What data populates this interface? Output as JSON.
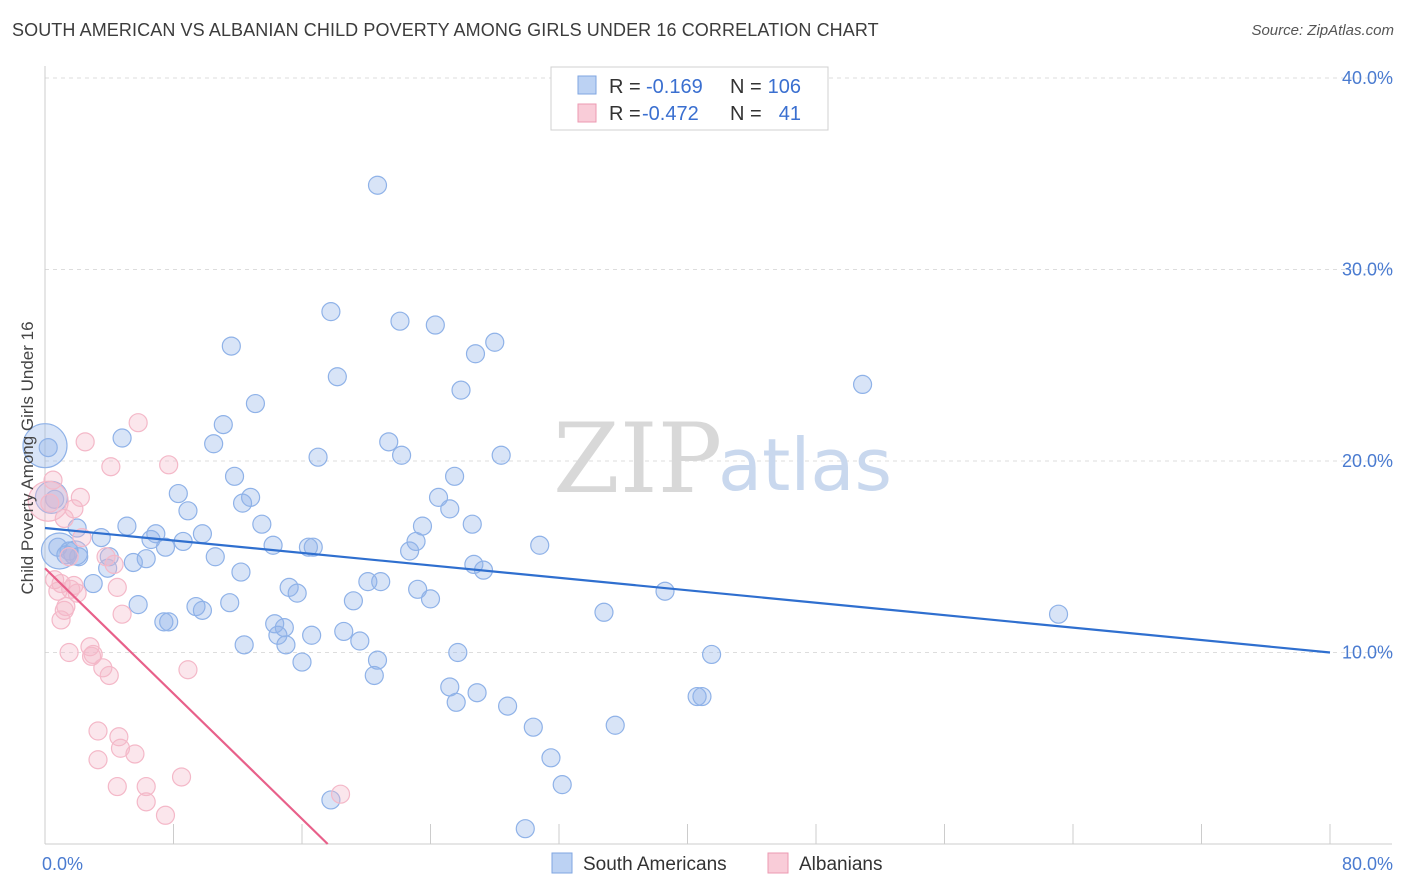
{
  "chart_data": {
    "type": "scatter",
    "title": "SOUTH AMERICAN VS ALBANIAN CHILD POVERTY AMONG GIRLS UNDER 16 CORRELATION CHART",
    "source": "Source: ZipAtlas.com",
    "ylabel": "Child Poverty Among Girls Under 16",
    "xlim": [
      0,
      80
    ],
    "ylim": [
      0,
      40
    ],
    "x_tick_labels": [
      "0.0%",
      "80.0%"
    ],
    "y_tick_labels": [
      {
        "value": 10,
        "label": "10.0%"
      },
      {
        "value": 20,
        "label": "20.0%"
      },
      {
        "value": 30,
        "label": "30.0%"
      },
      {
        "value": 40,
        "label": "40.0%"
      }
    ],
    "legend": {
      "rows": [
        {
          "r_label": "R =",
          "r_value": "-0.169",
          "n_label": "N =",
          "n_value": "106",
          "color": "#a9c4ee"
        },
        {
          "r_label": "R =",
          "r_value": "-0.472",
          "n_label": "N =",
          "n_value": "41",
          "color": "#f4b8c8"
        }
      ]
    },
    "watermark": {
      "zip": "ZIP",
      "atlas": "atlas"
    },
    "series": [
      {
        "name": "South Americans",
        "color": "#8fb2e8",
        "line_color": "#2f6fcf",
        "trend": [
          [
            0,
            16.5
          ],
          [
            80,
            10.0
          ]
        ],
        "points": [
          [
            20.7,
            34.4
          ],
          [
            17.8,
            27.8
          ],
          [
            22.1,
            27.3
          ],
          [
            24.3,
            27.1
          ],
          [
            28.0,
            26.2
          ],
          [
            11.6,
            26.0
          ],
          [
            26.8,
            25.6
          ],
          [
            18.2,
            24.4
          ],
          [
            50.9,
            24.0
          ],
          [
            25.9,
            23.7
          ],
          [
            13.1,
            23.0
          ],
          [
            11.1,
            21.9
          ],
          [
            4.8,
            21.2
          ],
          [
            21.4,
            21.0
          ],
          [
            10.5,
            20.9
          ],
          [
            22.2,
            20.3
          ],
          [
            17.0,
            20.2
          ],
          [
            28.4,
            20.3
          ],
          [
            0.2,
            20.7
          ],
          [
            11.8,
            19.2
          ],
          [
            25.5,
            19.2
          ],
          [
            8.3,
            18.3
          ],
          [
            12.8,
            18.1
          ],
          [
            24.5,
            18.1
          ],
          [
            0.6,
            18.0
          ],
          [
            12.3,
            17.8
          ],
          [
            25.2,
            17.5
          ],
          [
            8.9,
            17.4
          ],
          [
            13.5,
            16.7
          ],
          [
            26.6,
            16.7
          ],
          [
            23.5,
            16.6
          ],
          [
            2.0,
            16.5
          ],
          [
            5.1,
            16.6
          ],
          [
            6.9,
            16.2
          ],
          [
            3.5,
            16.0
          ],
          [
            9.8,
            16.2
          ],
          [
            0.8,
            15.5
          ],
          [
            6.6,
            15.9
          ],
          [
            8.6,
            15.8
          ],
          [
            16.4,
            15.5
          ],
          [
            30.8,
            15.6
          ],
          [
            14.2,
            15.6
          ],
          [
            16.7,
            15.5
          ],
          [
            23.1,
            15.8
          ],
          [
            7.5,
            15.5
          ],
          [
            1.5,
            15.3
          ],
          [
            1.3,
            15.1
          ],
          [
            2.1,
            15.0
          ],
          [
            4.0,
            15.0
          ],
          [
            6.3,
            14.9
          ],
          [
            22.7,
            15.3
          ],
          [
            26.7,
            14.6
          ],
          [
            10.6,
            15.0
          ],
          [
            5.5,
            14.7
          ],
          [
            27.3,
            14.3
          ],
          [
            3.9,
            14.4
          ],
          [
            12.2,
            14.2
          ],
          [
            20.1,
            13.7
          ],
          [
            20.9,
            13.7
          ],
          [
            23.2,
            13.3
          ],
          [
            15.2,
            13.4
          ],
          [
            15.7,
            13.1
          ],
          [
            3.0,
            13.6
          ],
          [
            19.2,
            12.7
          ],
          [
            24.0,
            12.8
          ],
          [
            38.6,
            13.2
          ],
          [
            11.5,
            12.6
          ],
          [
            9.4,
            12.4
          ],
          [
            9.8,
            12.2
          ],
          [
            5.8,
            12.5
          ],
          [
            34.8,
            12.1
          ],
          [
            63.1,
            12.0
          ],
          [
            7.4,
            11.6
          ],
          [
            7.7,
            11.6
          ],
          [
            14.3,
            11.5
          ],
          [
            14.9,
            11.3
          ],
          [
            18.6,
            11.1
          ],
          [
            16.6,
            10.9
          ],
          [
            14.5,
            10.9
          ],
          [
            19.6,
            10.6
          ],
          [
            12.4,
            10.4
          ],
          [
            15.0,
            10.4
          ],
          [
            25.7,
            10.0
          ],
          [
            41.5,
            9.9
          ],
          [
            16.0,
            9.5
          ],
          [
            20.7,
            9.6
          ],
          [
            20.5,
            8.8
          ],
          [
            25.2,
            8.2
          ],
          [
            26.9,
            7.9
          ],
          [
            40.6,
            7.7
          ],
          [
            40.9,
            7.7
          ],
          [
            25.6,
            7.4
          ],
          [
            28.8,
            7.2
          ],
          [
            30.4,
            6.1
          ],
          [
            35.5,
            6.2
          ],
          [
            31.5,
            4.5
          ],
          [
            32.2,
            3.1
          ],
          [
            17.8,
            2.3
          ],
          [
            29.9,
            0.8
          ]
        ],
        "large_points": [
          [
            0.0,
            20.8,
            22
          ],
          [
            0.4,
            18.1,
            16
          ],
          [
            0.9,
            15.3,
            18
          ],
          [
            1.9,
            15.2,
            12
          ]
        ]
      },
      {
        "name": "Albanians",
        "color": "#f4b8c8",
        "line_color": "#e8608a",
        "trend": [
          [
            0,
            14.4
          ],
          [
            17.6,
            0.0
          ]
        ],
        "points": [
          [
            5.8,
            22.0
          ],
          [
            2.5,
            21.0
          ],
          [
            7.7,
            19.8
          ],
          [
            4.1,
            19.7
          ],
          [
            0.5,
            19.0
          ],
          [
            0.3,
            17.8
          ],
          [
            2.2,
            18.1
          ],
          [
            1.8,
            17.5
          ],
          [
            1.2,
            17.0
          ],
          [
            2.3,
            16.0
          ],
          [
            1.5,
            15.0
          ],
          [
            3.8,
            15.0
          ],
          [
            4.3,
            14.6
          ],
          [
            0.6,
            13.8
          ],
          [
            1.0,
            13.6
          ],
          [
            1.6,
            13.3
          ],
          [
            1.8,
            13.5
          ],
          [
            4.5,
            13.4
          ],
          [
            2.0,
            13.1
          ],
          [
            0.8,
            13.2
          ],
          [
            1.3,
            12.4
          ],
          [
            1.2,
            12.2
          ],
          [
            4.8,
            12.0
          ],
          [
            1.0,
            11.7
          ],
          [
            2.8,
            10.3
          ],
          [
            1.5,
            10.0
          ],
          [
            3.0,
            9.9
          ],
          [
            2.9,
            9.8
          ],
          [
            3.6,
            9.2
          ],
          [
            8.9,
            9.1
          ],
          [
            4.0,
            8.8
          ],
          [
            3.3,
            5.9
          ],
          [
            4.6,
            5.6
          ],
          [
            4.7,
            5.0
          ],
          [
            5.6,
            4.7
          ],
          [
            3.3,
            4.4
          ],
          [
            8.5,
            3.5
          ],
          [
            4.5,
            3.0
          ],
          [
            6.3,
            3.0
          ],
          [
            6.3,
            2.2
          ],
          [
            18.4,
            2.6
          ],
          [
            7.5,
            1.5
          ]
        ],
        "large_points": [
          [
            0.2,
            17.9,
            20
          ]
        ]
      }
    ]
  }
}
